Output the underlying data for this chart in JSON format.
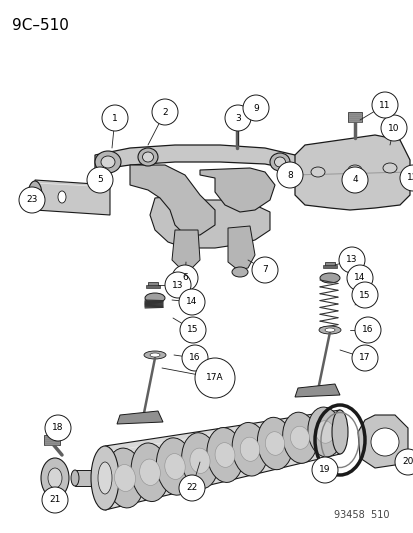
{
  "title": "9C–510",
  "footer": "93458  510",
  "bg_color": "#ffffff",
  "title_fontsize": 11,
  "footer_fontsize": 7,
  "fig_width": 4.14,
  "fig_height": 5.33,
  "dpi": 100,
  "line_color": "#1a1a1a",
  "gray_light": "#c8c8c8",
  "gray_mid": "#a0a0a0",
  "gray_dark": "#707070",
  "circle_r": 0.03
}
